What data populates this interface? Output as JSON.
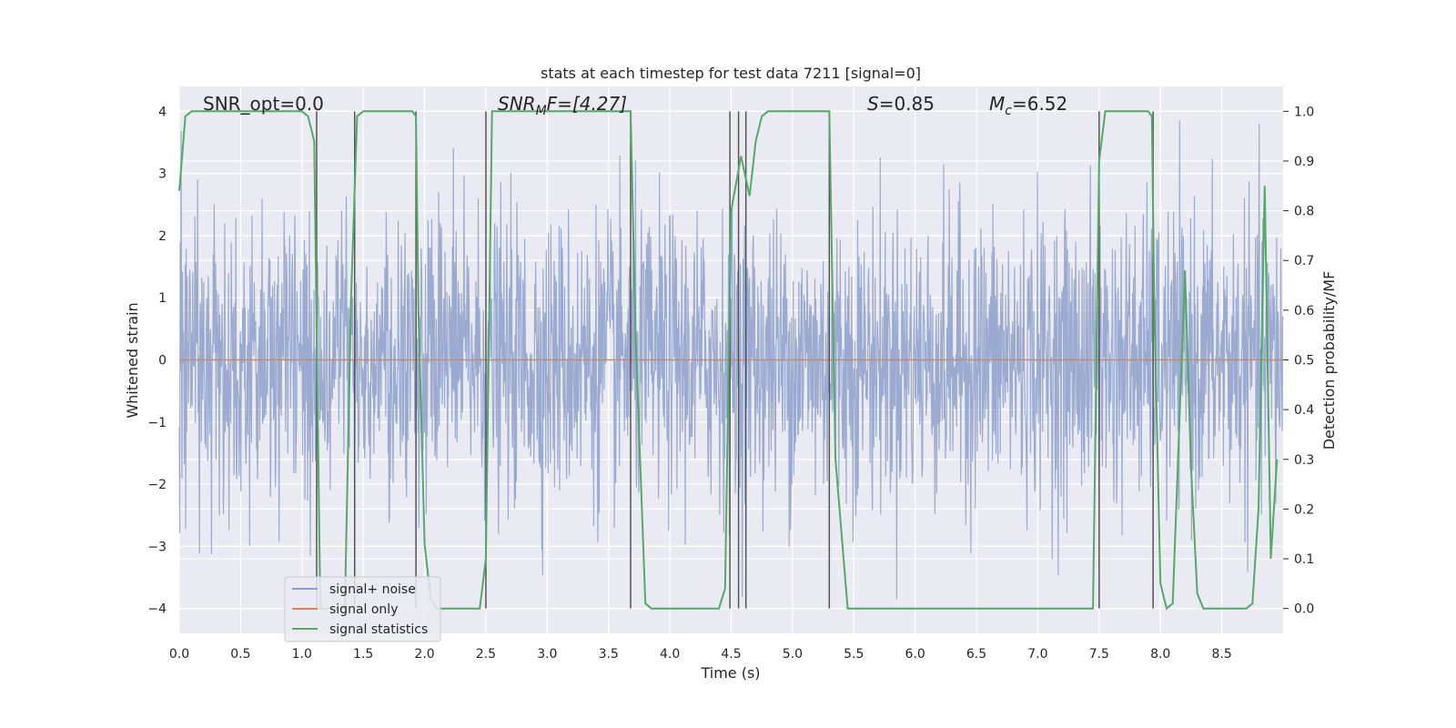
{
  "chart_data": {
    "type": "line",
    "title": "stats at each timestep for test data 7211 [signal=0]",
    "xlabel": "Time (s)",
    "ylabel": "Whitened strain",
    "y2label": "Detection probability/MF",
    "xlim": [
      0.0,
      9.0
    ],
    "ylim": [
      -4.4,
      4.4
    ],
    "y2lim": [
      -0.05,
      1.05
    ],
    "x_ticks": [
      "0.0",
      "0.5",
      "1.0",
      "1.5",
      "2.0",
      "2.5",
      "3.0",
      "3.5",
      "4.0",
      "4.5",
      "5.0",
      "5.5",
      "6.0",
      "6.5",
      "7.0",
      "7.5",
      "8.0",
      "8.5"
    ],
    "y_ticks": [
      "4",
      "3",
      "2",
      "1",
      "0",
      "−1",
      "−2",
      "−3",
      "−4"
    ],
    "y2_ticks": [
      "1.0",
      "0.9",
      "0.8",
      "0.7",
      "0.6",
      "0.5",
      "0.4",
      "0.3",
      "0.2",
      "0.1",
      "0.0"
    ],
    "grid": true,
    "legend_position": "bottom-left",
    "annotations": {
      "snr_opt": "SNR_opt=0.0",
      "snr_mf_main": "SNR",
      "snr_mf_sub": "M",
      "snr_mf_rest": "F=[4.27]",
      "s_var": "S",
      "s_rest": "=0.85",
      "mc_var": "M",
      "mc_sub": "c",
      "mc_rest": "=6.52"
    },
    "series": [
      {
        "name": "signal+ noise",
        "color": "#8c9fca",
        "description": "whitened strain noise, amplitude roughly within −3.8 to 3.8"
      },
      {
        "name": "signal only",
        "color": "#dd8452",
        "x": [
          0.0,
          9.0
        ],
        "y": [
          0.0,
          0.0
        ]
      },
      {
        "name": "signal statistics",
        "color": "#55a868",
        "axis": "right",
        "x": [
          0.0,
          0.05,
          0.1,
          0.15,
          0.2,
          0.3,
          0.5,
          0.7,
          0.9,
          1.0,
          1.05,
          1.1,
          1.12,
          1.15,
          1.2,
          1.25,
          1.3,
          1.35,
          1.4,
          1.45,
          1.5,
          1.7,
          1.9,
          1.93,
          1.95,
          2.0,
          2.05,
          2.1,
          2.2,
          2.3,
          2.45,
          2.5,
          2.55,
          2.6,
          3.0,
          3.5,
          3.68,
          3.72,
          3.8,
          3.85,
          4.0,
          4.2,
          4.4,
          4.45,
          4.5,
          4.58,
          4.65,
          4.7,
          4.75,
          4.8,
          5.0,
          5.2,
          5.3,
          5.35,
          5.45,
          5.6,
          6.0,
          6.5,
          7.0,
          7.3,
          7.45,
          7.5,
          7.55,
          7.6,
          7.9,
          7.93,
          7.95,
          8.0,
          8.05,
          8.1,
          8.2,
          8.25,
          8.3,
          8.35,
          8.5,
          8.7,
          8.75,
          8.8,
          8.85,
          8.9,
          8.95
        ],
        "y": [
          0.84,
          0.99,
          1.0,
          1.0,
          1.0,
          1.0,
          1.0,
          1.0,
          1.0,
          1.0,
          0.99,
          0.94,
          0.55,
          0.0,
          0.0,
          0.0,
          0.0,
          0.0,
          0.62,
          0.99,
          1.0,
          1.0,
          1.0,
          0.99,
          0.6,
          0.13,
          0.02,
          0.0,
          0.0,
          0.0,
          0.0,
          0.1,
          1.0,
          1.0,
          1.0,
          1.0,
          1.0,
          0.55,
          0.01,
          0.0,
          0.0,
          0.0,
          0.0,
          0.04,
          0.8,
          0.91,
          0.83,
          0.94,
          0.99,
          1.0,
          1.0,
          1.0,
          1.0,
          0.3,
          0.0,
          0.0,
          0.0,
          0.0,
          0.0,
          0.0,
          0.0,
          0.9,
          1.0,
          1.0,
          1.0,
          0.99,
          0.6,
          0.05,
          0.0,
          0.01,
          0.68,
          0.28,
          0.03,
          0.0,
          0.0,
          0.0,
          0.01,
          0.2,
          0.85,
          0.1,
          0.3
        ]
      }
    ],
    "vlines": [
      1.12,
      1.43,
      1.93,
      2.5,
      3.68,
      4.49,
      4.56,
      4.62,
      5.3,
      7.5,
      7.94
    ],
    "vline_color": "#555555",
    "noise_seed": 7211
  }
}
